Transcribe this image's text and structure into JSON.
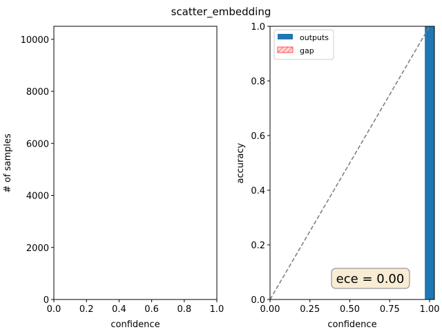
{
  "chart_data": [
    {
      "type": "bar",
      "panel": "left",
      "title": "scatter_embedding",
      "xlabel": "confidence",
      "ylabel": "# of samples",
      "xlim": [
        0,
        1
      ],
      "ylim": [
        0,
        10500
      ],
      "xticks": [
        "0.0",
        "0.2",
        "0.4",
        "0.6",
        "0.8",
        "1.0"
      ],
      "yticks": [
        "0",
        "2000",
        "4000",
        "6000",
        "8000",
        "10000"
      ],
      "x": [],
      "values": [],
      "grid": false
    },
    {
      "type": "bar",
      "panel": "right",
      "xlabel": "confidence",
      "ylabel": "accuracy",
      "xlim": [
        0,
        1.03
      ],
      "ylim": [
        0,
        1
      ],
      "xticks": [
        "0.00",
        "0.25",
        "0.50",
        "0.75",
        "1.00"
      ],
      "yticks": [
        "0.0",
        "0.2",
        "0.4",
        "0.6",
        "0.8",
        "1.0"
      ],
      "series": [
        {
          "name": "outputs",
          "color": "#1f77b4",
          "bins": [
            {
              "x_start": 0.97,
              "x_end": 1.03,
              "value": 1.0
            }
          ]
        },
        {
          "name": "gap",
          "color": "#ff9a9a",
          "bins": []
        }
      ],
      "reference_line": {
        "style": "dashed",
        "color": "#808080",
        "from": [
          0,
          0
        ],
        "to": [
          1,
          1
        ]
      },
      "legend_position": "top-left",
      "annotation": "ece = 0.00",
      "grid": false
    }
  ]
}
